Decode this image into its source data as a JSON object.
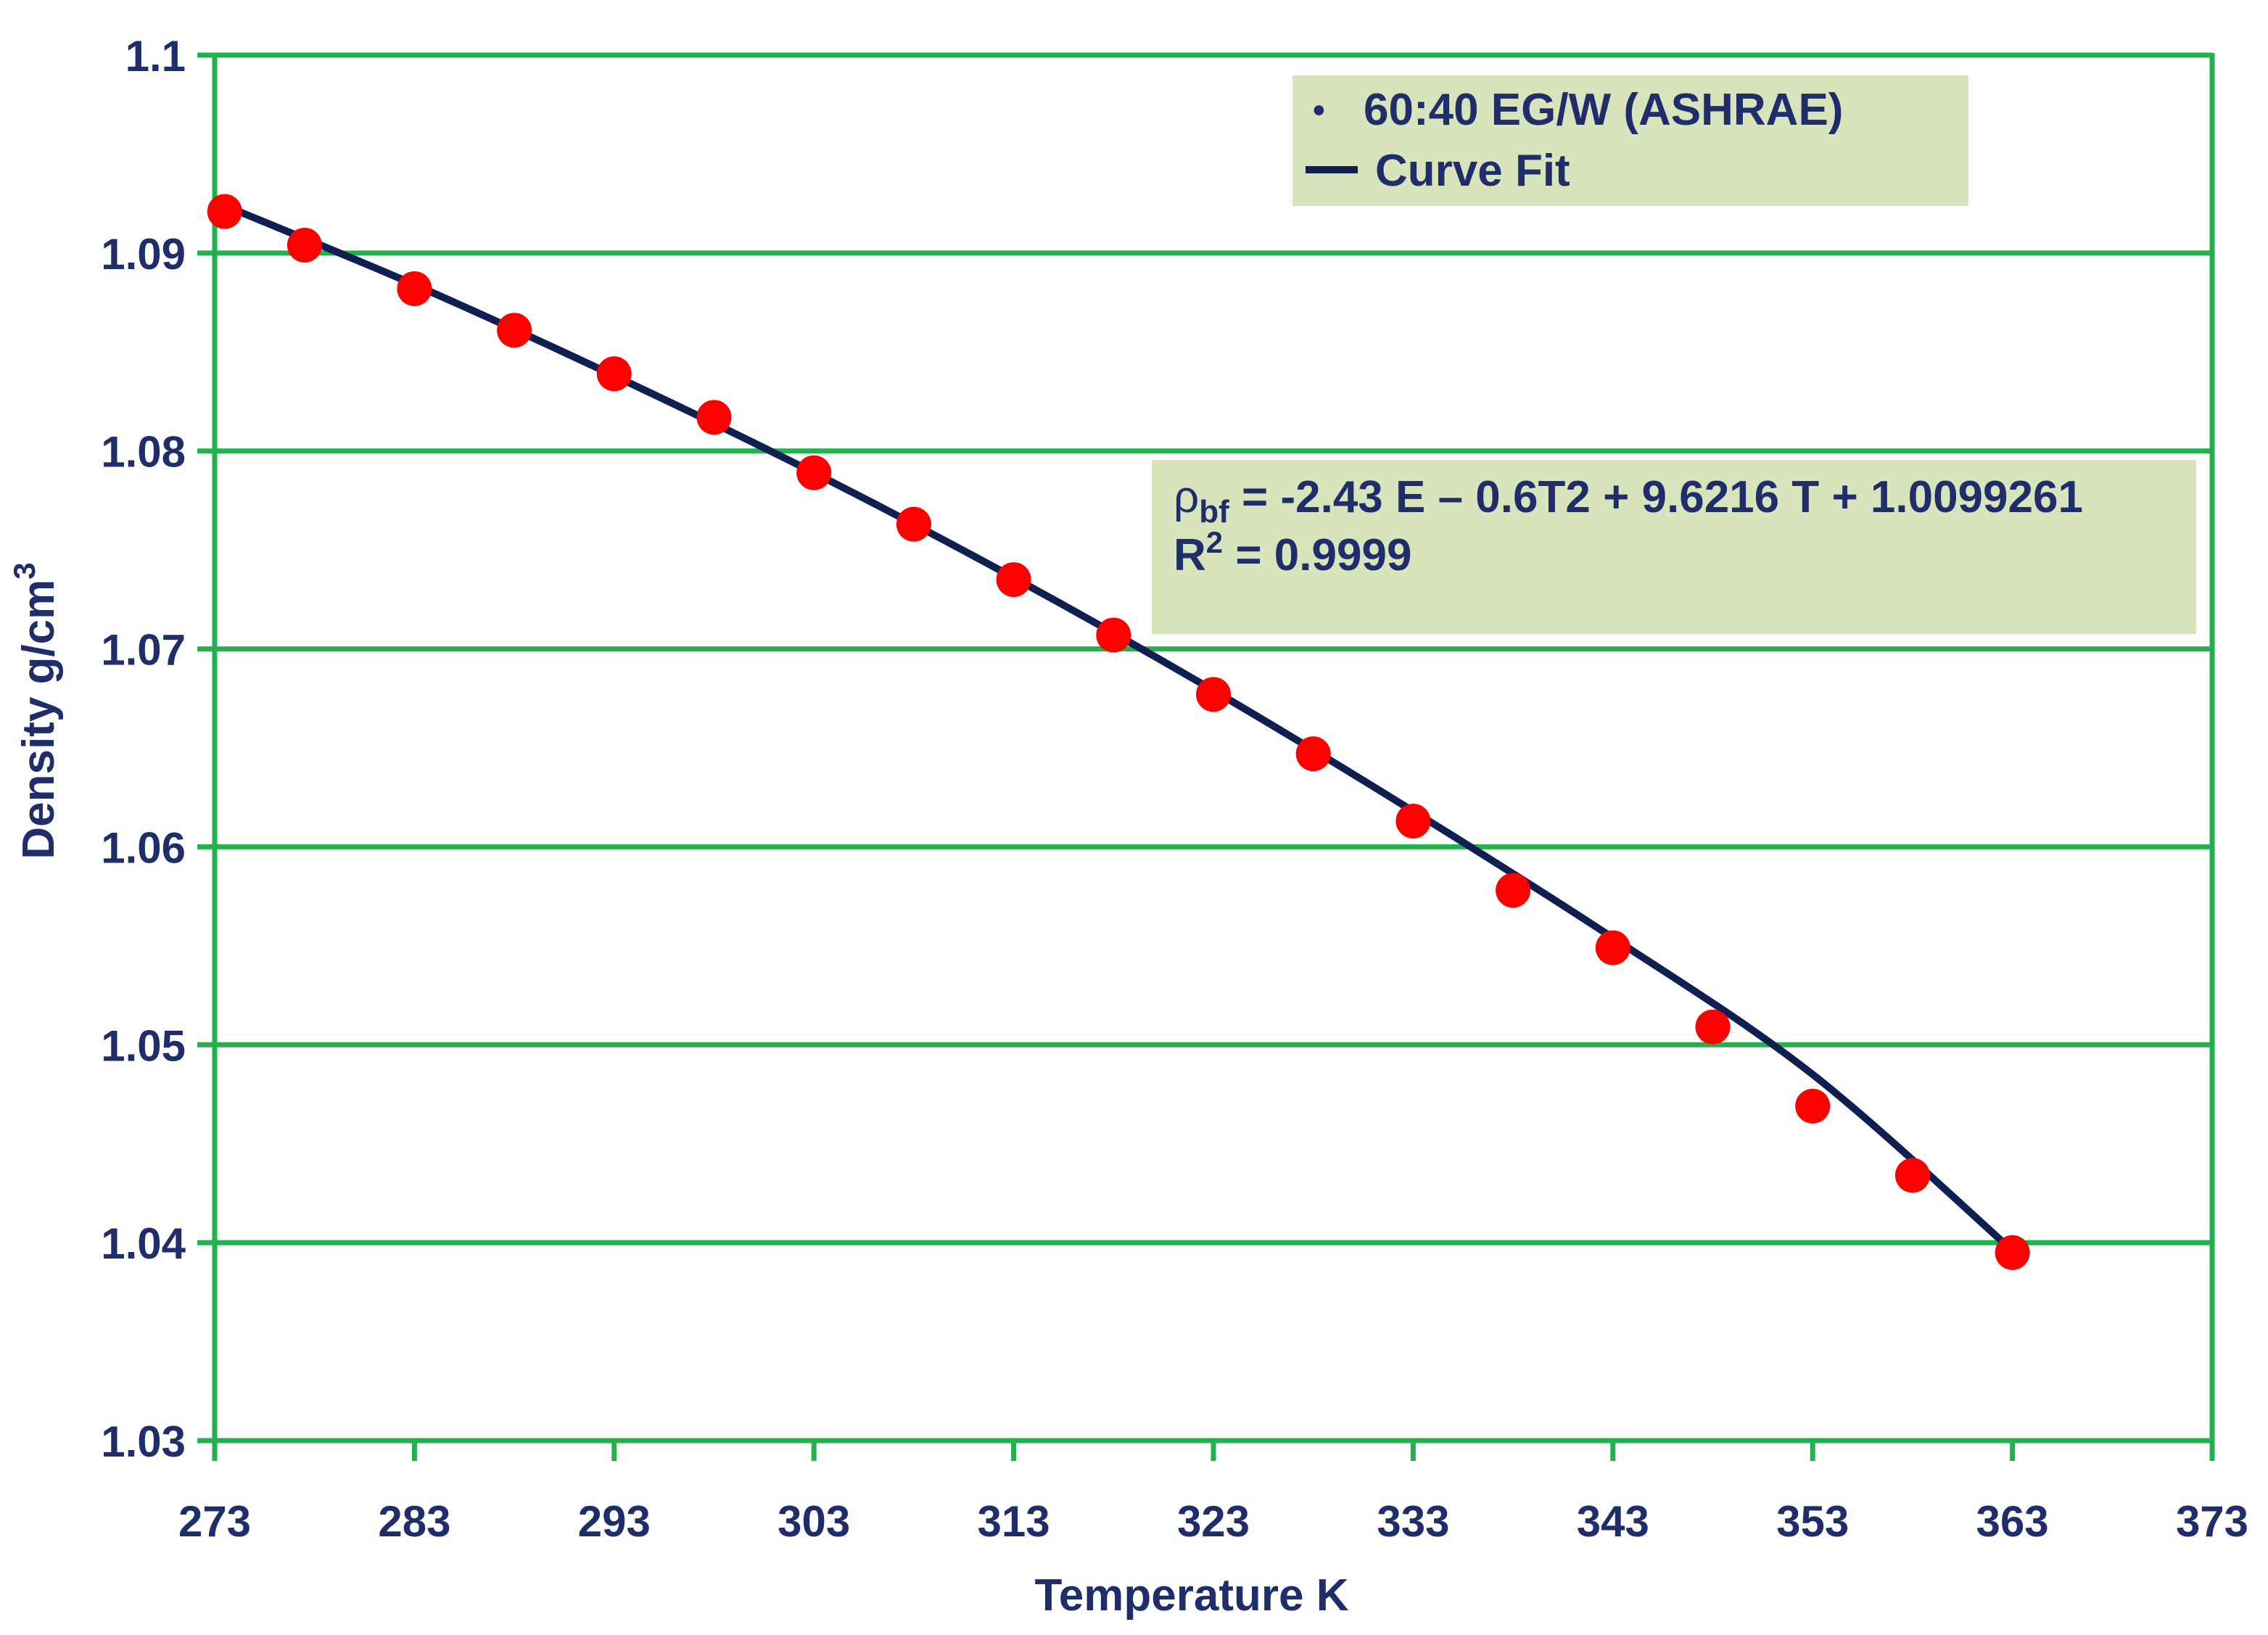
{
  "chart_data": {
    "type": "scatter",
    "title": "",
    "xlabel": "Temperature K",
    "ylabel": "Density g/cm",
    "ylabel_superscript": "3",
    "xlim": [
      273,
      373
    ],
    "ylim": [
      1.03,
      1.1
    ],
    "x_ticks": [
      273,
      283,
      293,
      303,
      313,
      323,
      333,
      343,
      353,
      363,
      373
    ],
    "y_ticks": [
      1.03,
      1.04,
      1.05,
      1.06,
      1.07,
      1.08,
      1.09,
      1.1
    ],
    "grid": true,
    "legend_position": "top-right",
    "colors": {
      "grid": "#22b14c",
      "text": "#1f2d6b",
      "curve": "#0f1f52",
      "marker": "#ff0000",
      "box_fill": "#d8e4bc"
    },
    "series": [
      {
        "name": "60:40 EG/W (ASHRAE)",
        "kind": "points",
        "x": [
          273.5,
          277.5,
          283,
          288,
          293,
          298,
          303,
          308,
          313,
          318,
          323,
          328,
          333,
          338,
          343,
          348,
          353,
          358,
          363
        ],
        "y": [
          1.0921,
          1.0904,
          1.0882,
          1.0861,
          1.0839,
          1.0817,
          1.0789,
          1.0763,
          1.0735,
          1.0707,
          1.0677,
          1.0647,
          1.0613,
          1.0578,
          1.0549,
          1.0509,
          1.0469,
          1.0434,
          1.0395
        ]
      },
      {
        "name": "Curve Fit",
        "kind": "line",
        "x": [
          273,
          283,
          293,
          303,
          313,
          323,
          333,
          343,
          353,
          363
        ],
        "y": [
          1.0926,
          1.0884,
          1.0838,
          1.0789,
          1.0736,
          1.0679,
          1.0618,
          1.0554,
          1.0485,
          1.0396
        ]
      }
    ],
    "annotations": {
      "equation_symbol": "ρ",
      "equation_subscript": "bf",
      "equation_text": " = -2.43 E – 0.6T2 + 9.6216 T + 1.0099261",
      "r2_prefix": "R",
      "r2_superscript": "2",
      "r2_text": " = 0.9999"
    },
    "legend_markers": {
      "points": "•"
    }
  }
}
